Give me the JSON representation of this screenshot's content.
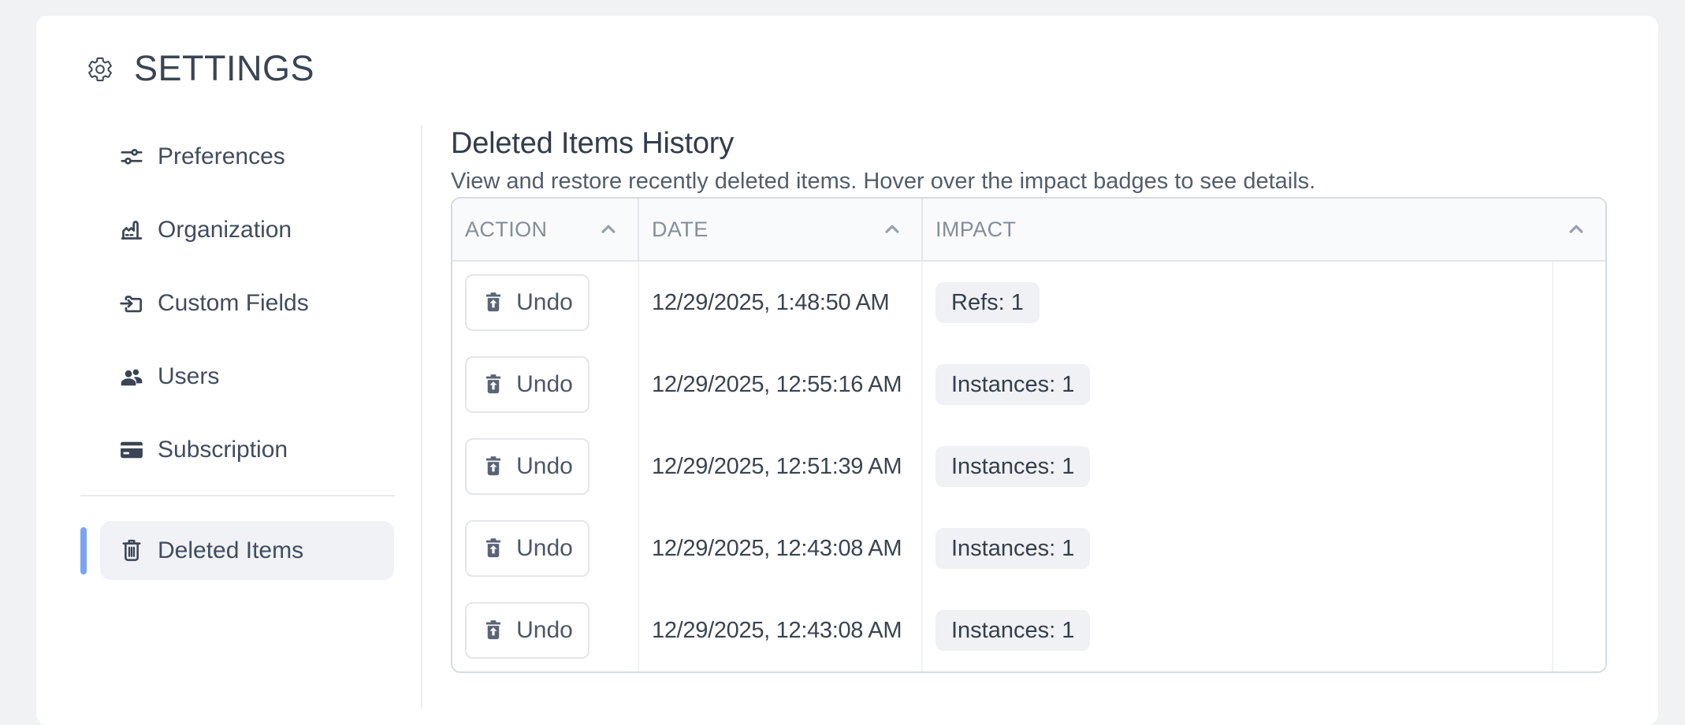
{
  "app": {
    "title": "SETTINGS"
  },
  "sidebar": {
    "items": [
      {
        "label": "Preferences",
        "icon": "sliders-icon",
        "active": false
      },
      {
        "label": "Organization",
        "icon": "factory-icon",
        "active": false
      },
      {
        "label": "Custom Fields",
        "icon": "folder-move-icon",
        "active": false
      },
      {
        "label": "Users",
        "icon": "users-icon",
        "active": false
      },
      {
        "label": "Subscription",
        "icon": "credit-card-icon",
        "active": false
      },
      {
        "label": "Deleted Items",
        "icon": "trash-icon",
        "active": true
      }
    ]
  },
  "main": {
    "title": "Deleted Items History",
    "subtitle": "View and restore recently deleted items. Hover over the impact badges to see details.",
    "table": {
      "columns": [
        {
          "label": "ACTION",
          "sort": "asc"
        },
        {
          "label": "DATE",
          "sort": "asc"
        },
        {
          "label": "IMPACT",
          "sort": "asc"
        }
      ],
      "rows": [
        {
          "action_label": "Undo",
          "date": "12/29/2025, 1:48:50 AM",
          "impact": "Refs: 1"
        },
        {
          "action_label": "Undo",
          "date": "12/29/2025, 12:55:16 AM",
          "impact": "Instances: 1"
        },
        {
          "action_label": "Undo",
          "date": "12/29/2025, 12:51:39 AM",
          "impact": "Instances: 1"
        },
        {
          "action_label": "Undo",
          "date": "12/29/2025, 12:43:08 AM",
          "impact": "Instances: 1"
        },
        {
          "action_label": "Undo",
          "date": "12/29/2025, 12:43:08 AM",
          "impact": "Instances: 1"
        }
      ]
    }
  },
  "colors": {
    "page_bg": "#f1f2f4",
    "card_bg": "#ffffff",
    "accent_blue": "#7aa3f3",
    "header_bg": "#f9fafb",
    "badge_bg": "#f0f1f4",
    "text_dark": "#3a4454",
    "text_gray": "#858d98"
  }
}
